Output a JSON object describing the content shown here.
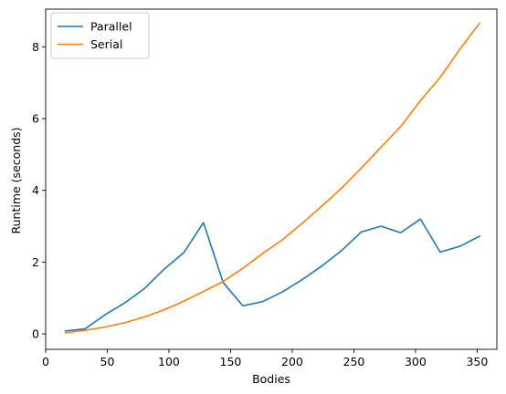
{
  "chart_data": {
    "type": "line",
    "title": "",
    "xlabel": "Bodies",
    "ylabel": "Runtime (seconds)",
    "xlim": [
      0,
      366
    ],
    "ylim": [
      -0.43,
      9.05
    ],
    "xticks": [
      0,
      50,
      100,
      150,
      200,
      250,
      300,
      350
    ],
    "yticks": [
      0,
      2,
      4,
      6,
      8
    ],
    "grid": false,
    "legend_position": "top-left",
    "x": [
      16,
      32,
      48,
      64,
      80,
      96,
      112,
      128,
      144,
      160,
      176,
      192,
      208,
      224,
      240,
      256,
      272,
      288,
      304,
      320,
      336,
      352
    ],
    "series": [
      {
        "name": "Parallel",
        "color": "#1f77b4",
        "values": [
          0.08,
          0.14,
          0.53,
          0.86,
          1.26,
          1.8,
          2.26,
          3.1,
          1.43,
          0.78,
          0.9,
          1.17,
          1.51,
          1.89,
          2.32,
          2.84,
          3.0,
          2.82,
          3.2,
          2.28,
          2.44,
          2.72
        ]
      },
      {
        "name": "Serial",
        "color": "#ff7f0e",
        "values": [
          0.03,
          0.1,
          0.19,
          0.31,
          0.47,
          0.67,
          0.91,
          1.18,
          1.46,
          1.83,
          2.24,
          2.62,
          3.08,
          3.56,
          4.06,
          4.62,
          5.2,
          5.78,
          6.5,
          7.15,
          7.93,
          8.66
        ]
      }
    ]
  }
}
